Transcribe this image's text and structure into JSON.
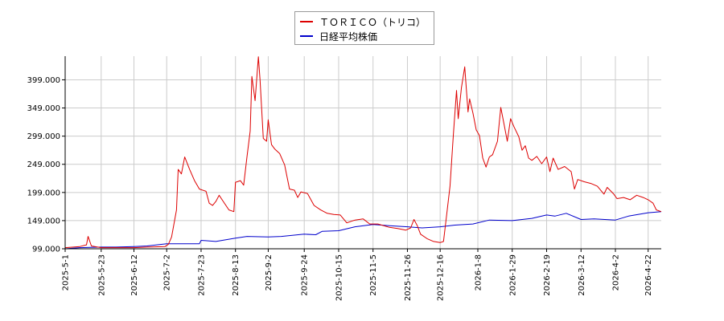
{
  "chart_data": {
    "type": "line",
    "title": "",
    "xlabel": "",
    "ylabel": "",
    "ylim": [
      99,
      441
    ],
    "yticks": [
      "99.000",
      "149.000",
      "199.000",
      "249.000",
      "299.000",
      "349.000",
      "399.000"
    ],
    "xticks": [
      "2025-5-1",
      "2025-5-23",
      "2025-6-12",
      "2025-7-2",
      "2025-7-23",
      "2025-8-13",
      "2025-9-2",
      "2025-9-24",
      "2025-10-15",
      "2025-11-5",
      "2025-11-26",
      "2025-12-16",
      "2026-1-8",
      "2026-1-29",
      "2026-2-19",
      "2026-3-12",
      "2026-4-2",
      "2026-4-22"
    ],
    "grid": true,
    "legend_position": "top-center",
    "series": [
      {
        "name": "ＴＯＲＩＣＯ（トリコ）",
        "color": "#dd0000",
        "points": [
          [
            "2025-5-1",
            101
          ],
          [
            "2025-5-6",
            102
          ],
          [
            "2025-5-10",
            103
          ],
          [
            "2025-5-14",
            106
          ],
          [
            "2025-5-15",
            121
          ],
          [
            "2025-5-17",
            104
          ],
          [
            "2025-5-23",
            101
          ],
          [
            "2025-6-1",
            101
          ],
          [
            "2025-6-12",
            101
          ],
          [
            "2025-6-20",
            102
          ],
          [
            "2025-7-1",
            103
          ],
          [
            "2025-7-3",
            107
          ],
          [
            "2025-7-5",
            120
          ],
          [
            "2025-7-8",
            168
          ],
          [
            "2025-7-9",
            240
          ],
          [
            "2025-7-11",
            232
          ],
          [
            "2025-7-13",
            262
          ],
          [
            "2025-7-16",
            240
          ],
          [
            "2025-7-19",
            220
          ],
          [
            "2025-7-22",
            205
          ],
          [
            "2025-7-26",
            201
          ],
          [
            "2025-7-28",
            180
          ],
          [
            "2025-7-30",
            176
          ],
          [
            "2025-8-1",
            183
          ],
          [
            "2025-8-3",
            194
          ],
          [
            "2025-8-6",
            181
          ],
          [
            "2025-8-9",
            168
          ],
          [
            "2025-8-12",
            165
          ],
          [
            "2025-8-13",
            217
          ],
          [
            "2025-8-14",
            218
          ],
          [
            "2025-8-16",
            220
          ],
          [
            "2025-8-18",
            212
          ],
          [
            "2025-8-20",
            262
          ],
          [
            "2025-8-22",
            308
          ],
          [
            "2025-8-23",
            405
          ],
          [
            "2025-8-25",
            362
          ],
          [
            "2025-8-27",
            440
          ],
          [
            "2025-8-28",
            398
          ],
          [
            "2025-8-30",
            295
          ],
          [
            "2025-9-1",
            290
          ],
          [
            "2025-9-2",
            328
          ],
          [
            "2025-9-4",
            284
          ],
          [
            "2025-9-6",
            276
          ],
          [
            "2025-9-9",
            268
          ],
          [
            "2025-9-12",
            248
          ],
          [
            "2025-9-15",
            205
          ],
          [
            "2025-9-18",
            203
          ],
          [
            "2025-9-20",
            190
          ],
          [
            "2025-9-22",
            200
          ],
          [
            "2025-9-26",
            197
          ],
          [
            "2025-9-30",
            176
          ],
          [
            "2025-10-4",
            168
          ],
          [
            "2025-10-8",
            162
          ],
          [
            "2025-10-12",
            160
          ],
          [
            "2025-10-16",
            159
          ],
          [
            "2025-10-20",
            145
          ],
          [
            "2025-10-25",
            150
          ],
          [
            "2025-10-30",
            152
          ],
          [
            "2025-11-3",
            143
          ],
          [
            "2025-11-8",
            143
          ],
          [
            "2025-11-15",
            137
          ],
          [
            "2025-11-20",
            135
          ],
          [
            "2025-11-25",
            132
          ],
          [
            "2025-11-28",
            136
          ],
          [
            "2025-11-30",
            151
          ],
          [
            "2025-12-2",
            140
          ],
          [
            "2025-12-4",
            125
          ],
          [
            "2025-12-8",
            117
          ],
          [
            "2025-12-12",
            112
          ],
          [
            "2025-12-16",
            110
          ],
          [
            "2025-12-18",
            112
          ],
          [
            "2025-12-20",
            160
          ],
          [
            "2025-12-22",
            210
          ],
          [
            "2025-12-24",
            300
          ],
          [
            "2025-12-26",
            380
          ],
          [
            "2025-12-27",
            330
          ],
          [
            "2025-12-29",
            385
          ],
          [
            "2025-12-31",
            422
          ],
          [
            "2026-1-2",
            342
          ],
          [
            "2026-1-3",
            365
          ],
          [
            "2026-1-5",
            340
          ],
          [
            "2026-1-7",
            310
          ],
          [
            "2026-1-9",
            300
          ],
          [
            "2026-1-11",
            260
          ],
          [
            "2026-1-13",
            244
          ],
          [
            "2026-1-15",
            262
          ],
          [
            "2026-1-17",
            266
          ],
          [
            "2026-1-20",
            290
          ],
          [
            "2026-1-22",
            350
          ],
          [
            "2026-1-24",
            320
          ],
          [
            "2026-1-26",
            290
          ],
          [
            "2026-1-28",
            330
          ],
          [
            "2026-1-30",
            316
          ],
          [
            "2026-2-2",
            298
          ],
          [
            "2026-2-4",
            274
          ],
          [
            "2026-2-6",
            282
          ],
          [
            "2026-2-8",
            260
          ],
          [
            "2026-2-10",
            256
          ],
          [
            "2026-2-13",
            263
          ],
          [
            "2026-2-16",
            250
          ],
          [
            "2026-2-19",
            262
          ],
          [
            "2026-2-21",
            236
          ],
          [
            "2026-2-23",
            260
          ],
          [
            "2026-2-26",
            240
          ],
          [
            "2026-3-2",
            245
          ],
          [
            "2026-3-6",
            236
          ],
          [
            "2026-3-8",
            205
          ],
          [
            "2026-3-10",
            222
          ],
          [
            "2026-3-14",
            218
          ],
          [
            "2026-3-18",
            215
          ],
          [
            "2026-3-22",
            210
          ],
          [
            "2026-3-26",
            196
          ],
          [
            "2026-3-28",
            208
          ],
          [
            "2026-4-1",
            196
          ],
          [
            "2026-4-3",
            188
          ],
          [
            "2026-4-7",
            190
          ],
          [
            "2026-4-11",
            186
          ],
          [
            "2026-4-15",
            194
          ],
          [
            "2026-4-19",
            190
          ],
          [
            "2026-4-22",
            186
          ],
          [
            "2026-4-25",
            180
          ],
          [
            "2026-4-27",
            168
          ],
          [
            "2026-4-30",
            165
          ]
        ]
      },
      {
        "name": "日経平均株価",
        "color": "#0000cc",
        "points": [
          [
            "2025-5-1",
            99
          ],
          [
            "2025-5-10",
            101
          ],
          [
            "2025-5-23",
            102
          ],
          [
            "2025-6-1",
            102
          ],
          [
            "2025-6-12",
            103
          ],
          [
            "2025-6-20",
            104
          ],
          [
            "2025-7-2",
            108
          ],
          [
            "2025-7-10",
            108
          ],
          [
            "2025-7-22",
            108
          ],
          [
            "2025-7-23",
            114
          ],
          [
            "2025-8-1",
            112
          ],
          [
            "2025-8-13",
            118
          ],
          [
            "2025-8-20",
            121
          ],
          [
            "2025-9-2",
            120
          ],
          [
            "2025-9-10",
            121
          ],
          [
            "2025-9-24",
            125
          ],
          [
            "2025-10-1",
            124
          ],
          [
            "2025-10-5",
            130
          ],
          [
            "2025-10-15",
            131
          ],
          [
            "2025-10-25",
            138
          ],
          [
            "2025-11-5",
            142
          ],
          [
            "2025-11-15",
            140
          ],
          [
            "2025-11-26",
            138
          ],
          [
            "2025-12-5",
            136
          ],
          [
            "2025-12-16",
            138
          ],
          [
            "2025-12-25",
            141
          ],
          [
            "2026-1-5",
            143
          ],
          [
            "2026-1-15",
            150
          ],
          [
            "2026-1-29",
            149
          ],
          [
            "2026-2-10",
            153
          ],
          [
            "2026-2-19",
            159
          ],
          [
            "2026-2-24",
            157
          ],
          [
            "2026-3-3",
            162
          ],
          [
            "2026-3-12",
            151
          ],
          [
            "2026-3-20",
            152
          ],
          [
            "2026-4-2",
            150
          ],
          [
            "2026-4-10",
            157
          ],
          [
            "2026-4-22",
            163
          ],
          [
            "2026-4-30",
            165
          ]
        ]
      }
    ]
  }
}
